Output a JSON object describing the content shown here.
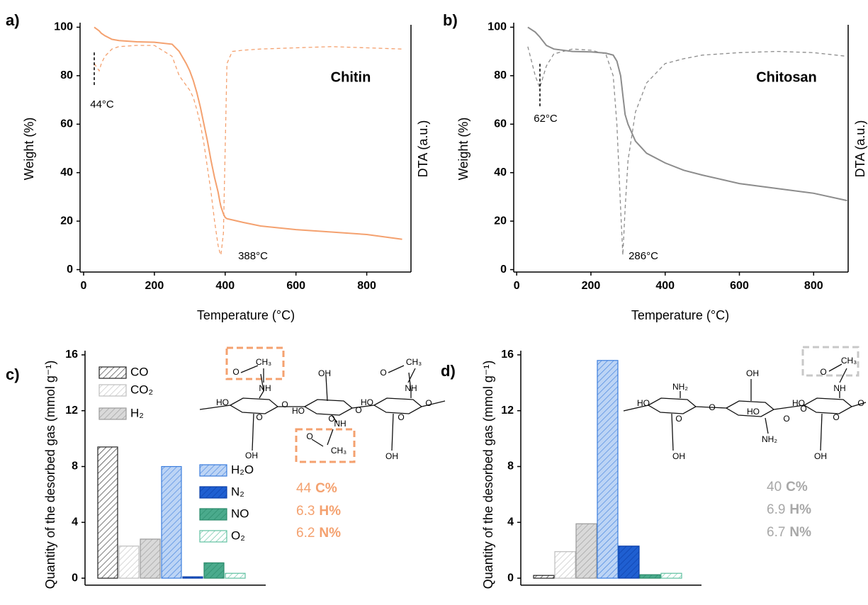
{
  "chart_data": [
    {
      "type": "line",
      "panel_label": "a)",
      "xlabel": "Temperature (°C)",
      "ylabel": "Weight (%)",
      "y2label": "DTA (a.u.)",
      "series_label": "Chitin",
      "peak_labels": [
        "44°C",
        "388°C"
      ],
      "x": [
        30,
        44,
        50,
        60,
        80,
        100,
        150,
        200,
        250,
        270,
        290,
        300,
        310,
        320,
        330,
        340,
        350,
        360,
        370,
        380,
        385,
        388,
        395,
        400,
        405,
        420,
        450,
        500,
        600,
        700,
        800,
        900
      ],
      "xlim": [
        -10,
        925
      ],
      "xticks": [
        0,
        200,
        400,
        600,
        800
      ],
      "ylim": [
        -1,
        101
      ],
      "yticks": [
        0,
        20,
        40,
        60,
        80,
        100
      ],
      "y2lim": [
        -1,
        101
      ],
      "series": [
        {
          "color": "#f4a16f",
          "line_style": "solid",
          "values": [
            100,
            98.5,
            97.5,
            96.5,
            95,
            94.5,
            94,
            93.8,
            93,
            90,
            85,
            82,
            78,
            73,
            67,
            60,
            53,
            45,
            38,
            32,
            28,
            26,
            23,
            21.5,
            21,
            20.5,
            19.5,
            18,
            16.5,
            15.5,
            14.5,
            12.5
          ]
        },
        {
          "color": "#f4a16f",
          "line_style": "dashed",
          "axis": "y2",
          "values": [
            85,
            82,
            85,
            88,
            91,
            92,
            92.5,
            92.5,
            88,
            80,
            76,
            74,
            71,
            66,
            60,
            52,
            42,
            32,
            20,
            10,
            7,
            6,
            15,
            50,
            85,
            90,
            90.5,
            91,
            91.5,
            92,
            91.5,
            91
          ]
        }
      ]
    },
    {
      "type": "line",
      "panel_label": "b)",
      "xlabel": "Temperature (°C)",
      "ylabel": "Weight (%)",
      "y2label": "DTA (a.u.)",
      "series_label": "Chitosan",
      "peak_labels": [
        "62°C",
        "286°C"
      ],
      "x": [
        30,
        50,
        62,
        80,
        100,
        150,
        200,
        240,
        260,
        270,
        280,
        286,
        292,
        300,
        320,
        350,
        400,
        450,
        500,
        600,
        700,
        800,
        890
      ],
      "xlim": [
        -8,
        893
      ],
      "xticks": [
        0,
        200,
        400,
        600,
        800
      ],
      "ylim": [
        -1,
        101
      ],
      "yticks": [
        0,
        20,
        40,
        60,
        80,
        100
      ],
      "y2lim": [
        -1,
        101
      ],
      "series": [
        {
          "color": "#8c8c8c",
          "line_style": "solid",
          "values": [
            100,
            98,
            96,
            92.5,
            91,
            90,
            89.8,
            89.3,
            88.5,
            86,
            80,
            72,
            64,
            60,
            53,
            48,
            44,
            41,
            39,
            35.5,
            33.5,
            31.5,
            28.5
          ]
        },
        {
          "color": "#8c8c8c",
          "line_style": "dashed",
          "axis": "y2",
          "values": [
            92,
            80,
            75,
            84,
            89,
            91,
            90.5,
            89,
            80,
            60,
            25,
            6,
            25,
            45,
            65,
            77,
            85,
            87,
            88.5,
            89.5,
            90,
            89.5,
            88
          ]
        }
      ]
    },
    {
      "type": "bar",
      "panel_label": "c)",
      "ylabel": "Quantity of the desorbed gas (mmol g⁻¹)",
      "legend": true,
      "categories": [
        "CO",
        "CO₂",
        "H₂",
        "H₂O",
        "N₂",
        "NO",
        "O₂"
      ],
      "values": [
        9.4,
        2.3,
        2.8,
        8.0,
        0.1,
        1.1,
        0.35
      ],
      "colors": [
        "#222222",
        "#bdbdbd",
        "#9a9a9a",
        "#3b7ddd",
        "#0c3fa8",
        "#2a8a6a",
        "#5fc0a0"
      ],
      "fill_colors": [
        "#ffffff",
        "#ffffff",
        "#d9d9d9",
        "#bcd4f5",
        "#1f5fd1",
        "#4aaa8c",
        "#ffffff"
      ],
      "ylim": [
        -0.5,
        16.3
      ],
      "yticks": [
        0,
        4,
        8,
        12,
        16
      ],
      "composition": [
        {
          "value": 44,
          "element": "C%"
        },
        {
          "value": 6.3,
          "element": "H%"
        },
        {
          "value": 6.2,
          "element": "N%"
        }
      ],
      "composition_color": "#f4a16f",
      "structure_labels": [
        "CH₃",
        "O",
        "NH",
        "HO",
        "O",
        "O",
        "OH",
        "HO",
        "O",
        "NH",
        "O",
        "CH₃",
        "OH",
        "O",
        "O",
        "CH₃",
        "NH",
        "HO",
        "O",
        "OH",
        "O"
      ]
    },
    {
      "type": "bar",
      "panel_label": "d)",
      "ylabel": "Quantity of the desorbed gas (mmol g⁻¹)",
      "legend": false,
      "categories": [
        "CO",
        "CO₂",
        "H₂",
        "H₂O",
        "N₂",
        "NO",
        "O₂"
      ],
      "values": [
        0.2,
        1.9,
        3.9,
        15.6,
        2.3,
        0.25,
        0.35
      ],
      "colors": [
        "#222222",
        "#bdbdbd",
        "#9a9a9a",
        "#3b7ddd",
        "#0c3fa8",
        "#2a8a6a",
        "#5fc0a0"
      ],
      "fill_colors": [
        "#ffffff",
        "#ffffff",
        "#d9d9d9",
        "#bcd4f5",
        "#1f5fd1",
        "#4aaa8c",
        "#ffffff"
      ],
      "ylim": [
        -0.5,
        16.3
      ],
      "yticks": [
        0,
        4,
        8,
        12,
        16
      ],
      "composition": [
        {
          "value": 40,
          "element": "C%"
        },
        {
          "value": 6.9,
          "element": "H%"
        },
        {
          "value": 6.7,
          "element": "N%"
        }
      ],
      "composition_color": "#a8a8a8",
      "structure_labels": [
        "NH₂",
        "HO",
        "O",
        "OH",
        "O",
        "OH",
        "HO",
        "O",
        "NH₂",
        "O",
        "CH₃",
        "O",
        "NH",
        "HO",
        "O",
        "OH",
        "O"
      ]
    }
  ]
}
